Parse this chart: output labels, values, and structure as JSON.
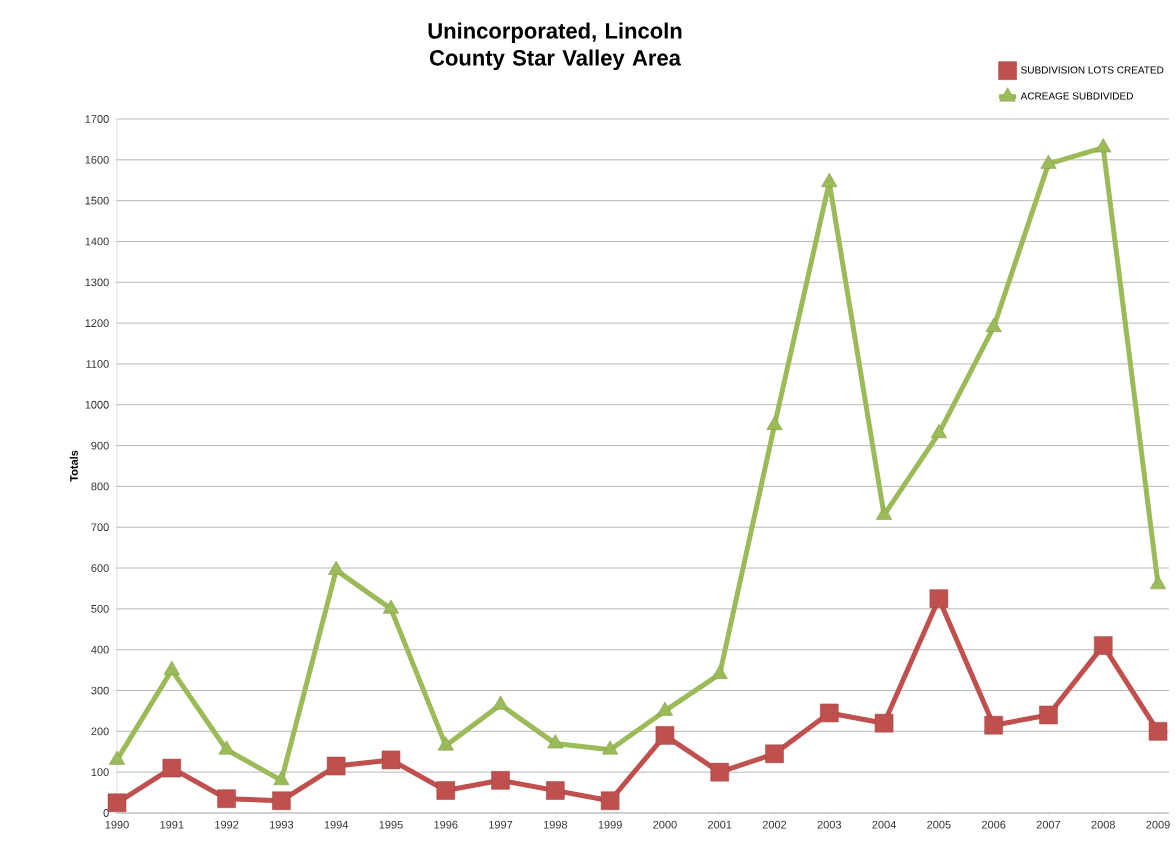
{
  "chart_data": {
    "type": "line",
    "title": "Unincorporated, Lincoln County Star Valley Area",
    "ylabel": "Totals",
    "categories": [
      "1990",
      "1991",
      "1992",
      "1993",
      "1994",
      "1995",
      "1996",
      "1997",
      "1998",
      "1999",
      "2000",
      "2001",
      "2002",
      "2003",
      "2004",
      "2005",
      "2006",
      "2007",
      "2008",
      "2009"
    ],
    "series": [
      {
        "name": "SUBDIVISION  LOTS CREATED",
        "color": "#c0504d",
        "marker": "square",
        "values": [
          25,
          110,
          35,
          30,
          115,
          130,
          55,
          80,
          55,
          30,
          190,
          100,
          145,
          245,
          220,
          525,
          215,
          240,
          410,
          200
        ]
      },
      {
        "name": "ACREAGE SUBDIVIDED",
        "color": "#9bbb59",
        "marker": "triangle",
        "values": [
          130,
          350,
          155,
          80,
          595,
          500,
          165,
          265,
          170,
          155,
          250,
          340,
          950,
          1545,
          730,
          930,
          1190,
          1590,
          1630,
          560
        ]
      }
    ],
    "ylim": [
      0,
      1700
    ],
    "yticks": [
      0,
      100,
      200,
      300,
      400,
      500,
      600,
      700,
      800,
      900,
      1000,
      1100,
      1200,
      1300,
      1400,
      1500,
      1600,
      1700
    ],
    "grid": "y",
    "legend": "top right",
    "line_style": "solid"
  }
}
